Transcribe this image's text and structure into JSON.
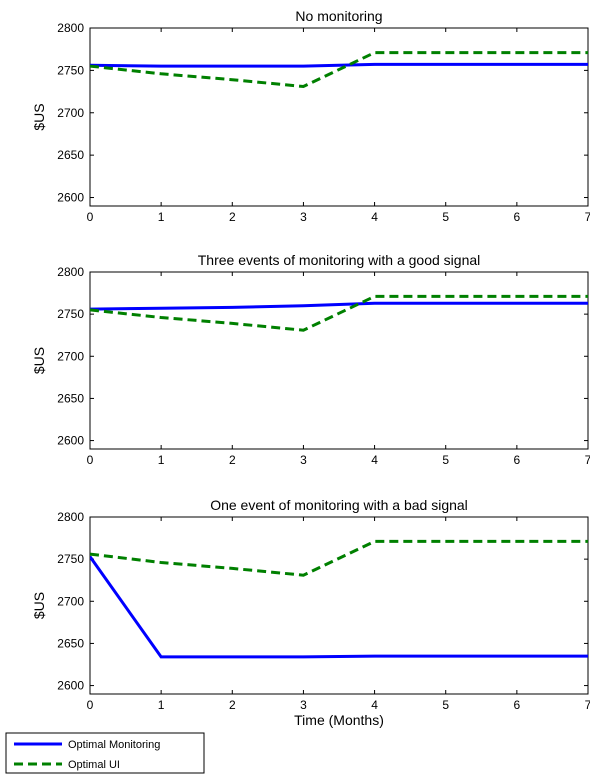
{
  "chart_data": [
    {
      "type": "line",
      "title": "No monitoring",
      "xlabel": "",
      "ylabel": "$US",
      "xlim": [
        0,
        7
      ],
      "ylim": [
        2590,
        2800
      ],
      "xticks": [
        0,
        1,
        2,
        3,
        4,
        5,
        6,
        7
      ],
      "yticks": [
        2600,
        2650,
        2700,
        2750,
        2800
      ],
      "grid": false,
      "series": [
        {
          "name": "Optimal Monitoring",
          "color": "#0000ff",
          "style": "solid",
          "x": [
            0,
            1,
            2,
            3,
            4,
            7
          ],
          "y": [
            2756,
            2755,
            2755,
            2755,
            2757,
            2757
          ]
        },
        {
          "name": "Optimal UI",
          "color": "#008000",
          "style": "dashed",
          "x": [
            0,
            1,
            2,
            3,
            4,
            7
          ],
          "y": [
            2755,
            2746,
            2739,
            2731,
            2771,
            2771
          ]
        }
      ]
    },
    {
      "type": "line",
      "title": "Three events of monitoring with a good signal",
      "xlabel": "",
      "ylabel": "$US",
      "xlim": [
        0,
        7
      ],
      "ylim": [
        2590,
        2800
      ],
      "xticks": [
        0,
        1,
        2,
        3,
        4,
        5,
        6,
        7
      ],
      "yticks": [
        2600,
        2650,
        2700,
        2750,
        2800
      ],
      "grid": false,
      "series": [
        {
          "name": "Optimal Monitoring",
          "color": "#0000ff",
          "style": "solid",
          "x": [
            0,
            1,
            2,
            3,
            4,
            7
          ],
          "y": [
            2756,
            2757,
            2758,
            2760,
            2763,
            2763
          ]
        },
        {
          "name": "Optimal UI",
          "color": "#008000",
          "style": "dashed",
          "x": [
            0,
            1,
            2,
            3,
            4,
            7
          ],
          "y": [
            2755,
            2746,
            2739,
            2731,
            2771,
            2771
          ]
        }
      ]
    },
    {
      "type": "line",
      "title": "One event of monitoring with a bad signal",
      "xlabel": "Time (Months)",
      "ylabel": "$US",
      "xlim": [
        0,
        7
      ],
      "ylim": [
        2590,
        2800
      ],
      "xticks": [
        0,
        1,
        2,
        3,
        4,
        5,
        6,
        7
      ],
      "yticks": [
        2600,
        2650,
        2700,
        2750,
        2800
      ],
      "grid": false,
      "series": [
        {
          "name": "Optimal Monitoring",
          "color": "#0000ff",
          "style": "solid",
          "x": [
            0,
            1,
            2,
            3,
            4,
            7
          ],
          "y": [
            2753,
            2634,
            2634,
            2634,
            2635,
            2635
          ]
        },
        {
          "name": "Optimal UI",
          "color": "#008000",
          "style": "dashed",
          "x": [
            0,
            1,
            2,
            3,
            4,
            7
          ],
          "y": [
            2756,
            2746,
            2739,
            2731,
            2771,
            2771
          ]
        }
      ]
    }
  ],
  "legend": {
    "placement": "bottom-left",
    "items": [
      {
        "label": "Optimal Monitoring",
        "color": "#0000ff",
        "style": "solid"
      },
      {
        "label": "Optimal UI",
        "color": "#008000",
        "style": "dashed"
      }
    ]
  }
}
